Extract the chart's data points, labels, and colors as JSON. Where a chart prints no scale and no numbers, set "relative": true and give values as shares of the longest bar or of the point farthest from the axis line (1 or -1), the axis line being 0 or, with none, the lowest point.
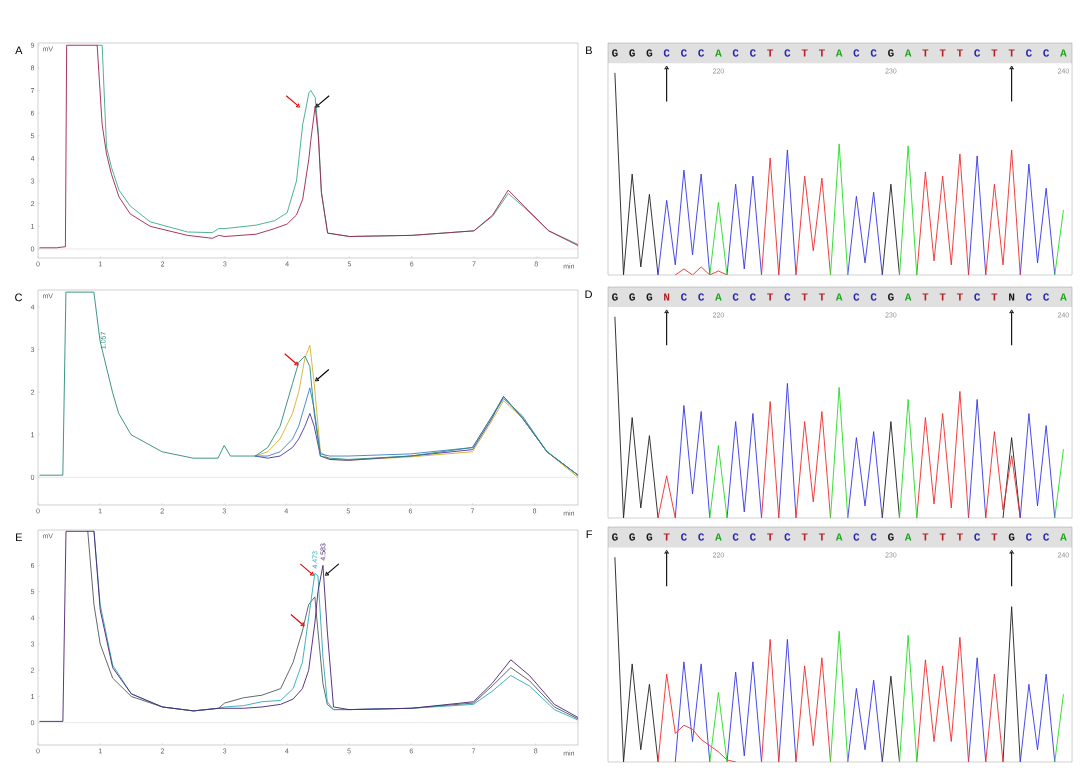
{
  "chart_data": [
    {
      "type": "line",
      "title": "A",
      "xlabel": "min",
      "ylabel": "mV",
      "xlim": [
        0,
        8.67
      ],
      "ylim": [
        -0.4,
        9.1
      ],
      "xticks": [
        0,
        1,
        2,
        3,
        4,
        5,
        6,
        7,
        8
      ],
      "yticks": [
        0,
        1,
        2,
        3,
        4,
        5,
        6,
        7,
        8,
        9
      ],
      "x": [
        0.03,
        0.3,
        0.44,
        0.46,
        0.95,
        1.03,
        1.1,
        1.18,
        1.3,
        1.48,
        1.8,
        2.4,
        2.8,
        2.9,
        3.0,
        3.5,
        3.8,
        4.0,
        4.15,
        4.25,
        4.35,
        4.38,
        4.45,
        4.5,
        4.55,
        4.65,
        5.0,
        6.0,
        7.0,
        7.3,
        7.55,
        7.8,
        8.2,
        8.67
      ],
      "series": [
        {
          "color": "#3aaa8a",
          "values": [
            null,
            null,
            null,
            null,
            9,
            9,
            4.5,
            3.6,
            2.6,
            1.9,
            1.2,
            0.75,
            0.72,
            0.9,
            0.9,
            1.05,
            1.25,
            1.6,
            3.0,
            5.5,
            6.9,
            7.0,
            6.7,
            5.2,
            2.5,
            0.7,
            0.55,
            0.6,
            0.8,
            1.45,
            2.45,
            1.85,
            0.8,
            0.2
          ]
        },
        {
          "color": "#a0204a",
          "values": [
            0.05,
            0.05,
            0.1,
            9,
            9,
            5.5,
            4.2,
            3.3,
            2.3,
            1.55,
            1.0,
            0.6,
            0.47,
            0.6,
            0.55,
            0.65,
            0.9,
            1.1,
            1.5,
            2.2,
            4.0,
            4.8,
            6.3,
            5.0,
            2.5,
            0.7,
            0.55,
            0.6,
            0.8,
            1.5,
            2.6,
            1.9,
            0.8,
            0.15
          ]
        }
      ],
      "ref_lines": [
        {
          "axis": "y",
          "value": 0,
          "color": "#c8c8c8"
        }
      ]
    },
    {
      "type": "line",
      "title": "B",
      "relative": true,
      "categories": [
        "G",
        null,
        "G",
        null,
        "G",
        null,
        "C",
        null,
        "C",
        null,
        "C",
        null,
        "A",
        null,
        "C",
        null,
        "C",
        null,
        "T",
        null,
        "C",
        null,
        "T",
        null,
        "T",
        null,
        "A",
        null,
        "C",
        null,
        "C",
        null,
        "G",
        null,
        "A",
        null,
        "T",
        null,
        "T",
        null,
        "T",
        null,
        "C",
        null,
        "T",
        null,
        "T",
        null,
        "C",
        null,
        "C",
        null,
        "A"
      ],
      "x2lim": [
        213.6,
        240.5
      ],
      "x2ticks": [
        220,
        230,
        240
      ],
      "series": [
        {
          "color": "#202020",
          "values": [
            1.0,
            0,
            0.5,
            0.04,
            0.4,
            0,
            null,
            null,
            null,
            null,
            null,
            null,
            null,
            null,
            null,
            null,
            null,
            null,
            null,
            null,
            null,
            null,
            null,
            null,
            null,
            null,
            null,
            null,
            null,
            null,
            null,
            0,
            0.45,
            0,
            null,
            null,
            null,
            null,
            null,
            null,
            null,
            null,
            null,
            null,
            null,
            null,
            null,
            null,
            null,
            null,
            null,
            null,
            null
          ]
        },
        {
          "color": "#3535e6",
          "values": [
            null,
            null,
            null,
            null,
            null,
            0,
            0.37,
            0.05,
            0.52,
            0.1,
            0.5,
            0,
            null,
            0,
            0.45,
            0.03,
            0.49,
            0,
            null,
            0,
            0.62,
            0,
            null,
            null,
            null,
            null,
            null,
            0,
            0.39,
            0.06,
            0.41,
            0,
            null,
            null,
            null,
            null,
            null,
            null,
            null,
            null,
            null,
            0,
            0.59,
            0,
            null,
            null,
            null,
            0,
            0.55,
            0.06,
            0.43,
            0,
            null
          ]
        },
        {
          "color": "#ee2b2b",
          "values": [
            null,
            null,
            null,
            null,
            null,
            null,
            null,
            0,
            0.03,
            0,
            0.04,
            0,
            0.02,
            0,
            null,
            null,
            null,
            0,
            0.58,
            0,
            null,
            0,
            0.49,
            0.12,
            0.48,
            0,
            null,
            null,
            null,
            null,
            null,
            null,
            null,
            null,
            null,
            0,
            0.51,
            0.07,
            0.49,
            0.05,
            0.6,
            0,
            null,
            0,
            0.45,
            0.05,
            0.62,
            0,
            null,
            null,
            null,
            null,
            null
          ]
        },
        {
          "color": "#22dd22",
          "values": [
            null,
            null,
            null,
            null,
            null,
            null,
            null,
            null,
            null,
            null,
            null,
            0,
            0.36,
            0,
            null,
            null,
            null,
            null,
            null,
            null,
            null,
            null,
            null,
            null,
            null,
            0,
            0.65,
            0,
            null,
            null,
            null,
            null,
            null,
            0,
            0.64,
            0,
            null,
            null,
            null,
            null,
            null,
            null,
            null,
            null,
            null,
            null,
            null,
            null,
            null,
            null,
            null,
            0,
            0.32
          ]
        }
      ]
    },
    {
      "type": "line",
      "title": "C",
      "xlabel": "min",
      "ylabel": "mV",
      "xlim": [
        0,
        8.7
      ],
      "ylim": [
        -0.65,
        4.4
      ],
      "xticks": [
        0,
        1,
        2,
        3,
        4,
        5,
        6,
        7,
        8
      ],
      "yticks": [
        0,
        1,
        2,
        3,
        4
      ],
      "x": [
        0.03,
        0.4,
        0.45,
        0.9,
        1.0,
        1.05,
        1.2,
        1.3,
        1.5,
        2.0,
        2.5,
        2.9,
        3.0,
        3.1,
        3.5,
        3.7,
        3.9,
        4.1,
        4.2,
        4.3,
        4.38,
        4.45,
        4.55,
        4.7,
        5.0,
        6.0,
        7.0,
        7.3,
        7.5,
        7.8,
        8.2,
        8.7
      ],
      "series": [
        {
          "color": "#d4b030",
          "values": [
            null,
            null,
            null,
            null,
            null,
            null,
            null,
            null,
            null,
            null,
            null,
            null,
            null,
            null,
            0.5,
            0.6,
            0.9,
            1.5,
            2.0,
            2.8,
            3.1,
            2.2,
            0.6,
            0.42,
            0.4,
            0.48,
            0.6,
            1.3,
            1.8,
            1.4,
            0.6,
            0.0
          ]
        },
        {
          "color": "#5030a0",
          "values": [
            null,
            null,
            null,
            null,
            null,
            null,
            null,
            null,
            null,
            null,
            null,
            null,
            null,
            null,
            0.5,
            0.45,
            0.5,
            0.7,
            0.9,
            1.2,
            1.5,
            1.2,
            0.5,
            0.42,
            0.4,
            0.5,
            0.65,
            1.35,
            1.9,
            1.4,
            0.6,
            0.05
          ]
        },
        {
          "color": "#3a80c8",
          "values": [
            null,
            null,
            null,
            null,
            null,
            null,
            null,
            null,
            null,
            null,
            null,
            null,
            null,
            null,
            0.5,
            0.5,
            0.6,
            0.9,
            1.2,
            1.7,
            2.1,
            1.6,
            0.55,
            0.5,
            0.5,
            0.55,
            0.7,
            1.4,
            1.85,
            1.45,
            0.6,
            0.05
          ]
        },
        {
          "color": "#2a8a7a",
          "values": [
            0.05,
            0.05,
            4.35,
            4.35,
            3.2,
            2.9,
            2.0,
            1.5,
            1.0,
            0.6,
            0.45,
            0.45,
            0.75,
            0.5,
            0.5,
            0.7,
            1.2,
            2.2,
            2.7,
            2.85,
            2.6,
            1.5,
            0.5,
            0.45,
            0.42,
            0.5,
            0.7,
            1.4,
            1.9,
            1.4,
            0.6,
            0.05
          ]
        }
      ],
      "ref_lines": [
        {
          "axis": "y",
          "value": 0,
          "color": "#c8c8c8"
        }
      ],
      "annotations": [
        {
          "text": "1.057",
          "x": 1.05,
          "y": 2.9
        }
      ]
    },
    {
      "type": "line",
      "title": "D",
      "relative": true,
      "categories": [
        "G",
        null,
        "G",
        null,
        "G",
        null,
        "N",
        null,
        "C",
        null,
        "C",
        null,
        "A",
        null,
        "C",
        null,
        "C",
        null,
        "T",
        null,
        "C",
        null,
        "T",
        null,
        "T",
        null,
        "A",
        null,
        "C",
        null,
        "C",
        null,
        "G",
        null,
        "A",
        null,
        "T",
        null,
        "T",
        null,
        "T",
        null,
        "C",
        null,
        "T",
        null,
        "N",
        null,
        "C",
        null,
        "C",
        null,
        "A"
      ],
      "x2lim": [
        213.6,
        240.5
      ],
      "x2ticks": [
        220,
        230,
        240
      ],
      "series": [
        {
          "color": "#202020",
          "values": [
            1.0,
            0,
            0.5,
            0.05,
            0.41,
            0,
            null,
            null,
            null,
            null,
            null,
            null,
            null,
            null,
            null,
            null,
            null,
            null,
            null,
            null,
            null,
            null,
            null,
            null,
            null,
            null,
            null,
            null,
            null,
            null,
            null,
            0,
            0.48,
            0,
            null,
            null,
            null,
            null,
            null,
            null,
            null,
            null,
            null,
            null,
            null,
            0,
            0.4,
            0,
            null,
            null,
            null,
            null,
            null
          ]
        },
        {
          "color": "#3535e6",
          "values": [
            null,
            null,
            null,
            null,
            null,
            null,
            null,
            0,
            0.56,
            0.12,
            0.53,
            0,
            null,
            0,
            0.48,
            0.03,
            0.52,
            0,
            null,
            0,
            0.67,
            0,
            null,
            null,
            null,
            null,
            null,
            0,
            0.4,
            0.06,
            0.43,
            0,
            null,
            null,
            null,
            null,
            null,
            null,
            null,
            null,
            null,
            0,
            0.59,
            0,
            null,
            null,
            null,
            0,
            0.52,
            0.06,
            0.46,
            0,
            null
          ]
        },
        {
          "color": "#ee2b2b",
          "values": [
            null,
            null,
            null,
            null,
            null,
            0,
            0.21,
            0,
            null,
            null,
            null,
            null,
            null,
            null,
            null,
            null,
            null,
            0,
            0.58,
            0,
            null,
            0,
            0.48,
            0.08,
            0.53,
            0,
            null,
            null,
            null,
            null,
            null,
            null,
            null,
            null,
            null,
            0,
            0.5,
            0.07,
            0.52,
            0.05,
            0.63,
            0,
            null,
            0,
            0.43,
            0.04,
            0.31,
            0,
            null,
            null,
            null,
            null,
            null
          ]
        },
        {
          "color": "#22dd22",
          "values": [
            null,
            null,
            null,
            null,
            null,
            null,
            null,
            null,
            null,
            null,
            null,
            0,
            0.36,
            0,
            null,
            null,
            null,
            null,
            null,
            null,
            null,
            null,
            null,
            null,
            null,
            0,
            0.65,
            0,
            null,
            null,
            null,
            null,
            null,
            0,
            0.59,
            0,
            null,
            null,
            null,
            null,
            null,
            null,
            null,
            null,
            null,
            null,
            null,
            null,
            null,
            null,
            null,
            0,
            0.34
          ]
        }
      ]
    },
    {
      "type": "line",
      "title": "E",
      "xlabel": "min",
      "ylabel": "mV",
      "xlim": [
        0,
        8.68
      ],
      "ylim": [
        -0.85,
        7.35
      ],
      "xticks": [
        0,
        1,
        2,
        3,
        4,
        5,
        6,
        7,
        8
      ],
      "yticks": [
        0,
        1,
        2,
        3,
        4,
        5,
        6
      ],
      "x": [
        0.03,
        0.4,
        0.45,
        0.8,
        0.9,
        1.0,
        1.2,
        1.5,
        2.0,
        2.5,
        2.9,
        3.0,
        3.3,
        3.6,
        3.9,
        4.1,
        4.25,
        4.35,
        4.45,
        4.5,
        4.58,
        4.65,
        4.75,
        5.0,
        6.0,
        7.0,
        7.3,
        7.6,
        7.9,
        8.3,
        8.68
      ],
      "series": [
        {
          "color": "#505860",
          "values": [
            null,
            null,
            null,
            7.3,
            4.5,
            3.0,
            1.7,
            1.0,
            0.6,
            0.45,
            0.55,
            0.75,
            0.95,
            1.05,
            1.3,
            2.3,
            3.5,
            4.5,
            4.8,
            3.5,
            1.5,
            0.7,
            0.5,
            0.5,
            0.55,
            0.75,
            1.4,
            2.1,
            1.6,
            0.6,
            0.15
          ]
        },
        {
          "color": "#30a8b8",
          "values": [
            null,
            null,
            null,
            null,
            7.3,
            4.5,
            2.2,
            1.1,
            0.6,
            0.45,
            0.55,
            0.6,
            0.65,
            0.8,
            0.85,
            1.3,
            2.3,
            4.0,
            5.7,
            5.6,
            2.5,
            0.8,
            0.5,
            0.5,
            0.55,
            0.7,
            1.2,
            1.8,
            1.4,
            0.5,
            0.1
          ]
        },
        {
          "color": "#4a2070",
          "values": [
            0.05,
            0.05,
            7.3,
            7.3,
            7.3,
            4.3,
            2.1,
            1.1,
            0.6,
            0.45,
            0.55,
            0.55,
            0.55,
            0.6,
            0.7,
            0.9,
            1.3,
            2.0,
            3.8,
            5.0,
            6.0,
            3.5,
            0.6,
            0.5,
            0.55,
            0.8,
            1.5,
            2.4,
            1.8,
            0.7,
            0.2
          ]
        }
      ],
      "ref_lines": [
        {
          "axis": "y",
          "value": 0,
          "color": "#c8c8c8"
        }
      ],
      "annotations": [
        {
          "text": "4.473",
          "x": 4.45,
          "y": 5.7
        },
        {
          "text": "4.583",
          "x": 4.58,
          "y": 6.0
        }
      ]
    },
    {
      "type": "line",
      "title": "F",
      "relative": true,
      "categories": [
        "G",
        null,
        "G",
        null,
        "G",
        null,
        "T",
        null,
        "C",
        null,
        "C",
        null,
        "A",
        null,
        "C",
        null,
        "C",
        null,
        "T",
        null,
        "C",
        null,
        "T",
        null,
        "T",
        null,
        "A",
        null,
        "C",
        null,
        "C",
        null,
        "G",
        null,
        "A",
        null,
        "T",
        null,
        "T",
        null,
        "T",
        null,
        "C",
        null,
        "T",
        null,
        "G",
        null,
        "C",
        null,
        "C",
        null,
        "A"
      ],
      "x2lim": [
        213.6,
        240.5
      ],
      "x2ticks": [
        220,
        230,
        240
      ],
      "series": [
        {
          "color": "#202020",
          "values": [
            1.0,
            0,
            0.48,
            0.06,
            0.38,
            0,
            null,
            null,
            null,
            null,
            null,
            null,
            null,
            null,
            null,
            null,
            null,
            null,
            null,
            null,
            null,
            null,
            null,
            null,
            null,
            null,
            null,
            null,
            null,
            null,
            null,
            0,
            0.42,
            0,
            null,
            null,
            null,
            null,
            null,
            null,
            null,
            null,
            null,
            null,
            null,
            0,
            0.76,
            0,
            null,
            null,
            null,
            null,
            null
          ]
        },
        {
          "color": "#3535e6",
          "values": [
            null,
            null,
            null,
            null,
            null,
            null,
            null,
            0,
            0.49,
            0.1,
            0.48,
            0,
            null,
            0,
            0.44,
            0.03,
            0.49,
            0,
            null,
            0,
            0.6,
            0,
            null,
            null,
            null,
            null,
            null,
            0,
            0.36,
            0.06,
            0.4,
            0,
            null,
            null,
            null,
            null,
            null,
            null,
            null,
            null,
            null,
            0,
            0.51,
            0,
            null,
            null,
            null,
            0,
            0.38,
            0.06,
            0.43,
            0,
            null
          ]
        },
        {
          "color": "#ee2b2b",
          "values": [
            null,
            null,
            null,
            null,
            null,
            0,
            0.43,
            0.14,
            0.18,
            0.16,
            0.11,
            0.08,
            0.05,
            0.01,
            0,
            null,
            null,
            0,
            0.6,
            0,
            null,
            0,
            0.47,
            0.08,
            0.51,
            0,
            null,
            null,
            null,
            null,
            null,
            null,
            null,
            null,
            null,
            0,
            0.5,
            0.1,
            0.47,
            0.1,
            0.61,
            0,
            null,
            0,
            0.43,
            0,
            null,
            null,
            null,
            null,
            null,
            null,
            null
          ]
        },
        {
          "color": "#22dd22",
          "values": [
            null,
            null,
            null,
            null,
            null,
            null,
            null,
            null,
            null,
            null,
            null,
            0,
            0.34,
            0,
            null,
            null,
            null,
            null,
            null,
            null,
            null,
            null,
            null,
            null,
            null,
            0,
            0.64,
            0,
            null,
            null,
            null,
            null,
            null,
            0,
            0.62,
            0,
            null,
            null,
            null,
            null,
            null,
            null,
            null,
            null,
            null,
            null,
            null,
            null,
            null,
            null,
            null,
            0,
            0.33
          ]
        }
      ]
    }
  ]
}
